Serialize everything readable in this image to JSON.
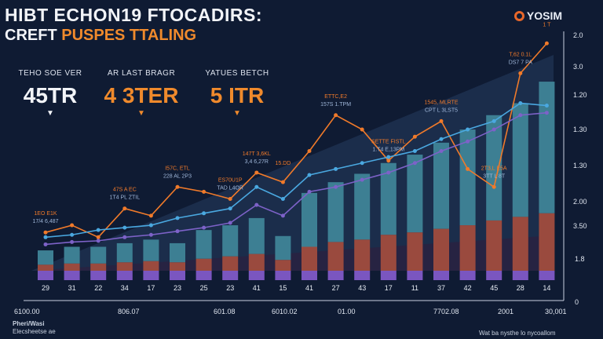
{
  "header": {
    "title_line1": "HIBT ECHON19 FTOCADIRS:",
    "title_line2_a": "CREFT",
    "title_line2_b": "PUSPES TTALING",
    "brand": "YOSIM"
  },
  "kpis": [
    {
      "label": "TEHO SOE VER",
      "value": "45TR",
      "arrow": "▼"
    },
    {
      "label": "AR LAST BRAGR",
      "value": "4 3TER",
      "arrow": "▼"
    },
    {
      "label": "YATUES BETCH",
      "value": "5 ITR",
      "arrow": "▼"
    }
  ],
  "y_axis_labels": [
    "2.0",
    "3.0",
    "1.20",
    "1.30",
    "1.30",
    "2.00",
    "3.50",
    "1.8",
    "0"
  ],
  "x_axis_labels": [
    "6100.00",
    "806.07",
    "601.08",
    "6010.02",
    "01.00",
    "7702.08",
    "2001",
    "30,001"
  ],
  "footer": {
    "left_line1": "Pheri/Wasi",
    "left_line2": "Elecsheetse ae",
    "right": "Wat ba nysthe lo nycoallom"
  },
  "colors": {
    "background": "#0f1b33",
    "bar_teal": "#3d7f93",
    "bar_rust": "#9a4a3e",
    "line_orange": "#f07a2a",
    "line_blue": "#4aa8e0",
    "line_purple": "#7d62c8"
  },
  "chart_data": {
    "type": "bar",
    "title": "HIBT ECHON19 FTOCADIRS: CREFT PUSPES TTALING",
    "categories": [
      "29",
      "31",
      "22",
      "34",
      "17",
      "23",
      "25",
      "23",
      "41",
      "15",
      "41",
      "27",
      "43",
      "17",
      "11",
      "37",
      "42",
      "45",
      "28",
      "14"
    ],
    "series": [
      {
        "name": "teal segment",
        "type": "bar",
        "values": [
          12,
          14,
          14,
          16,
          18,
          16,
          24,
          26,
          30,
          20,
          45,
          50,
          55,
          60,
          65,
          72,
          80,
          88,
          95,
          110
        ]
      },
      {
        "name": "rust segment",
        "type": "bar",
        "values": [
          5,
          6,
          6,
          7,
          8,
          7,
          10,
          12,
          14,
          9,
          20,
          24,
          26,
          30,
          32,
          35,
          38,
          42,
          45,
          48
        ]
      },
      {
        "name": "orange line",
        "type": "line",
        "values": [
          32,
          38,
          28,
          52,
          46,
          70,
          66,
          60,
          82,
          74,
          100,
          130,
          118,
          92,
          112,
          125,
          85,
          70,
          165,
          190
        ]
      },
      {
        "name": "blue line",
        "type": "line",
        "values": [
          28,
          30,
          34,
          36,
          38,
          44,
          48,
          52,
          70,
          60,
          80,
          85,
          90,
          95,
          100,
          110,
          118,
          125,
          140,
          138
        ]
      },
      {
        "name": "purple line",
        "type": "line",
        "values": [
          22,
          24,
          25,
          28,
          30,
          33,
          36,
          40,
          55,
          46,
          66,
          70,
          76,
          82,
          90,
          100,
          108,
          118,
          130,
          132
        ]
      }
    ],
    "annotations": [
      {
        "text": "1EO E1K",
        "series": 0,
        "index": 0
      },
      {
        "text": "17/4 6,487",
        "series": 0,
        "index": 0
      },
      {
        "text": "47S A EC",
        "series": 0,
        "index": 3
      },
      {
        "text": "1T4 PL ZTIL",
        "series": 0,
        "index": 3
      },
      {
        "text": "I57C, ETL",
        "series": 0,
        "index": 5
      },
      {
        "text": "228 AL 2P3",
        "series": 0,
        "index": 5
      },
      {
        "text": "ES70U1P",
        "series": 0,
        "index": 7
      },
      {
        "text": "TAD L4OR",
        "series": 0,
        "index": 7
      },
      {
        "text": "147T 3,6KL",
        "series": 0,
        "index": 8
      },
      {
        "text": "3,4 6,27R",
        "series": 0,
        "index": 8
      },
      {
        "text": "15.DD",
        "series": 0,
        "index": 9
      },
      {
        "text": "ETTC,E2",
        "series": 0,
        "index": 11
      },
      {
        "text": "157S 1.TPM",
        "series": 0,
        "index": 11
      },
      {
        "text": "SETTE FISTL",
        "series": 0,
        "index": 13
      },
      {
        "text": "1.T4 E,13PM",
        "series": 0,
        "index": 13
      },
      {
        "text": "1545, MLRTE",
        "series": 0,
        "index": 15
      },
      {
        "text": "CPT L 3LST5",
        "series": 0,
        "index": 15
      },
      {
        "text": "2T3,L E5A",
        "series": 0,
        "index": 17
      },
      {
        "text": "3TT L 8T",
        "series": 0,
        "index": 17
      },
      {
        "text": "T,62 0.1L",
        "series": 0,
        "index": 18
      },
      {
        "text": "DS7 7 PA",
        "series": 0,
        "index": 18
      },
      {
        "text": "1 T",
        "series": 0,
        "index": 19
      }
    ],
    "ylim": [
      0,
      200
    ],
    "xlabel": "",
    "ylabel": ""
  }
}
